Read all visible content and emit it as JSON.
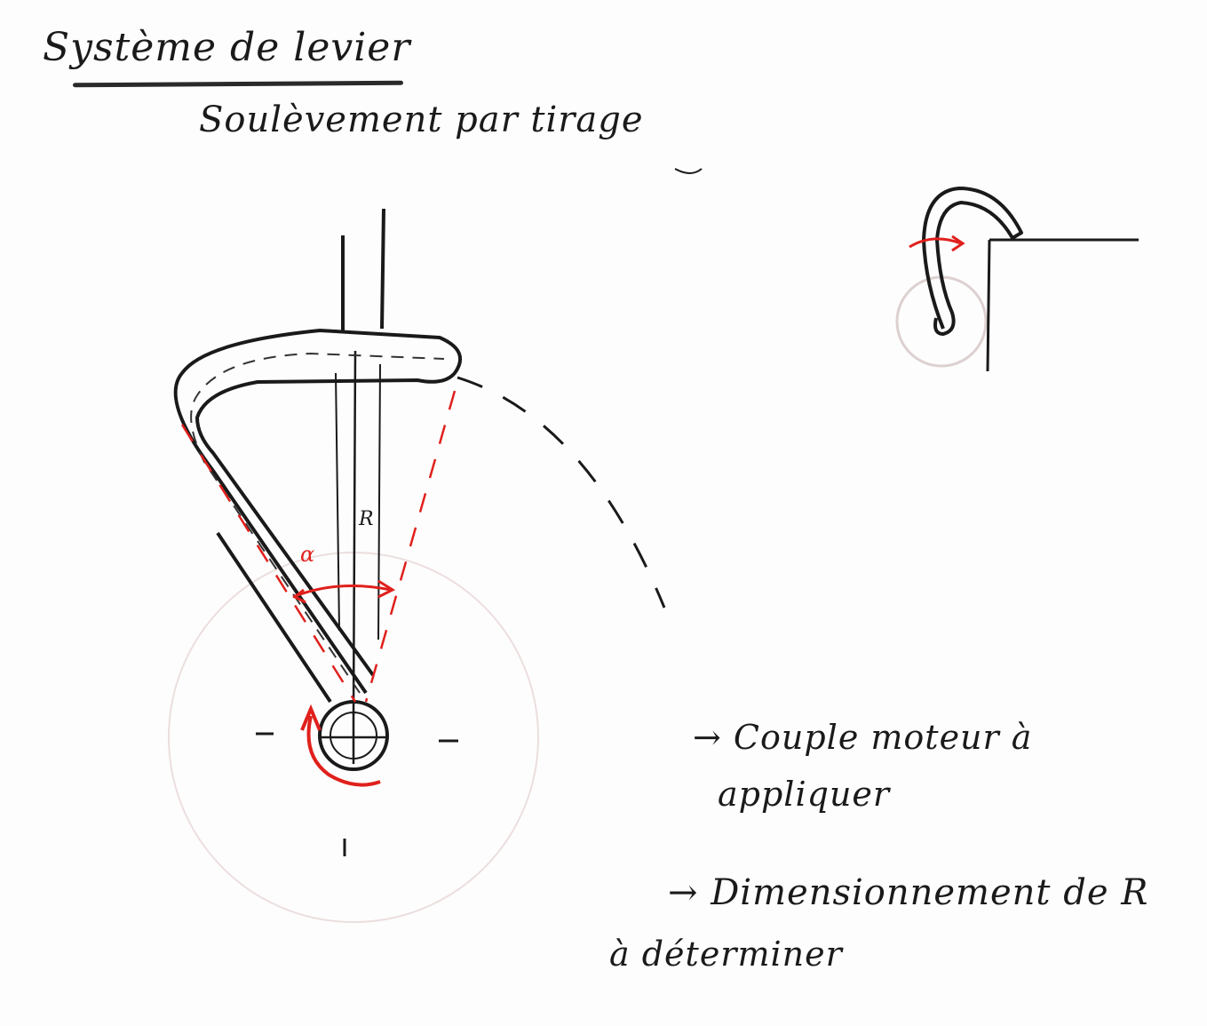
{
  "title": "Système de levier",
  "subtitle": "Soulèvement par tirage",
  "labels": {
    "alpha": "α",
    "radius": "R"
  },
  "notes": [
    "→ Couple moteur à",
    "appliquer",
    "→ Dimensionnement de R",
    "à déterminer"
  ],
  "colors": {
    "ink": "#1a1a1a",
    "red": "#e0201c",
    "faint_circle": "#e6dcdc"
  }
}
